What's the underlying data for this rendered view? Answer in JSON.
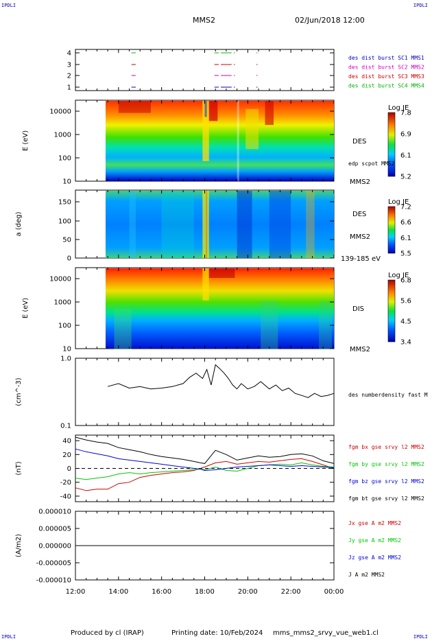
{
  "corners": {
    "top_left": "IPDLI",
    "top_right": "IPDLI",
    "bottom_left": "IPDLI",
    "bottom_right": "IPDLI"
  },
  "header": {
    "spacecraft": "MMS2",
    "datetime": "02/Jun/2018 12:00"
  },
  "footer": {
    "credit": "Produced by cl (IRAP)",
    "print_date": "Printing date: 10/Feb/2024",
    "filename": "mms_mms2_srvy_vue_web1.cl"
  },
  "time_axis": {
    "ticks": [
      "12:00",
      "14:00",
      "16:00",
      "18:00",
      "20:00",
      "22:00",
      "00:00"
    ],
    "range_hours": [
      12,
      24
    ]
  },
  "colors": {
    "mms1": "#0000c8",
    "mms2": "#c800c8",
    "mms3": "#c80000",
    "mms4": "#00b400",
    "bx": "#cc0000",
    "by": "#00c800",
    "bz": "#0000dd",
    "bt": "#000000"
  },
  "chart_data": [
    {
      "type": "scatter",
      "panel": "burst-availability",
      "ylabel": "",
      "yticks": [
        "4",
        "3",
        "2",
        "1"
      ],
      "legend": [
        "des dist burst SC1 MMS1",
        "des dist burst SC2 MMS2",
        "des dist burst SC3 MMS3",
        "des dist burst SC4 MMS4"
      ],
      "segments_hours": [
        [
          14.6,
          14.8
        ],
        [
          18.45,
          18.65
        ],
        [
          18.75,
          19.25
        ],
        [
          19.35,
          19.4
        ],
        [
          20.4,
          20.45
        ]
      ]
    },
    {
      "type": "heatmap",
      "panel": "des-energy",
      "ylabel": "E (eV)",
      "yticks": [
        "10000",
        "1000",
        "100",
        "10"
      ],
      "right_labels": [
        "DES",
        "edp scpot MMS2",
        "MMS2"
      ],
      "colorbar": {
        "title": "Log JE",
        "ticks": [
          "7.8",
          "6.9",
          "6.1",
          "5.2"
        ]
      },
      "data_start_hour": 13.4
    },
    {
      "type": "heatmap",
      "panel": "des-pitch-angle",
      "ylabel": "a (deg)",
      "yticks": [
        "150",
        "100",
        "50",
        "0"
      ],
      "right_labels": [
        "DES",
        "MMS2",
        "139-185 eV"
      ],
      "colorbar": {
        "title": "Log JE",
        "ticks": [
          "7.2",
          "6.6",
          "6.1",
          "5.5"
        ]
      }
    },
    {
      "type": "heatmap",
      "panel": "dis-energy",
      "ylabel": "E (eV)",
      "yticks": [
        "10000",
        "1000",
        "100",
        "10"
      ],
      "right_labels": [
        "DIS",
        "MMS2"
      ],
      "colorbar": {
        "title": "Log JE",
        "ticks": [
          "6.8",
          "5.6",
          "4.5",
          "3.4"
        ]
      }
    },
    {
      "type": "line",
      "panel": "density",
      "ylabel": "(cm^-3)",
      "yticks": [
        "1.0",
        "0.1"
      ],
      "legend": [
        "des numberdensity fast M"
      ],
      "x_hours": [
        13.5,
        14.0,
        14.5,
        15.0,
        15.5,
        16.0,
        16.5,
        17.0,
        17.3,
        17.6,
        17.9,
        18.1,
        18.3,
        18.5,
        18.7,
        18.9,
        19.1,
        19.3,
        19.5,
        19.7,
        20.0,
        20.3,
        20.6,
        21.0,
        21.3,
        21.6,
        21.9,
        22.2,
        22.5,
        22.8,
        23.1,
        23.4,
        23.7,
        24.0
      ],
      "values": [
        0.38,
        0.42,
        0.36,
        0.38,
        0.35,
        0.36,
        0.38,
        0.42,
        0.52,
        0.6,
        0.5,
        0.68,
        0.4,
        0.8,
        0.7,
        0.6,
        0.5,
        0.4,
        0.35,
        0.42,
        0.35,
        0.38,
        0.45,
        0.35,
        0.4,
        0.33,
        0.36,
        0.3,
        0.28,
        0.26,
        0.3,
        0.27,
        0.28,
        0.3
      ]
    },
    {
      "type": "line",
      "panel": "magnetic-field",
      "ylabel": "(nT)",
      "yticks": [
        "40",
        "20",
        "0",
        "-20",
        "-40"
      ],
      "ylim": [
        -48,
        48
      ],
      "legend": [
        "fgm bx gse srvy l2 MMS2",
        "fgm by gse srvy l2 MMS2",
        "fgm bz gse srvy l2 MMS2",
        "fgm bt gse srvy l2 MMS2"
      ],
      "x_hours": [
        12.0,
        12.5,
        13.0,
        13.5,
        14.0,
        14.5,
        15.0,
        15.5,
        16.0,
        16.5,
        17.0,
        17.5,
        17.8,
        18.0,
        18.5,
        19.0,
        19.5,
        20.0,
        20.5,
        21.0,
        21.5,
        22.0,
        22.5,
        23.0,
        23.5,
        24.0
      ],
      "series": [
        {
          "name": "bx",
          "values": [
            -28,
            -32,
            -30,
            -30,
            -22,
            -20,
            -13,
            -10,
            -8,
            -6,
            -5,
            -3,
            0,
            2,
            8,
            10,
            6,
            8,
            10,
            9,
            11,
            13,
            14,
            10,
            5,
            0
          ]
        },
        {
          "name": "by",
          "values": [
            -14,
            -16,
            -14,
            -12,
            -8,
            -6,
            -8,
            -6,
            -5,
            -4,
            -3,
            -2,
            -1,
            -2,
            2,
            -3,
            -4,
            0,
            4,
            5,
            6,
            5,
            8,
            5,
            3,
            2
          ]
        },
        {
          "name": "bz",
          "values": [
            28,
            24,
            21,
            18,
            14,
            12,
            10,
            8,
            6,
            4,
            2,
            0,
            -1,
            -3,
            -2,
            0,
            2,
            3,
            4,
            5,
            4,
            3,
            4,
            3,
            2,
            1
          ]
        },
        {
          "name": "bt",
          "values": [
            45,
            41,
            38,
            36,
            30,
            27,
            24,
            20,
            17,
            15,
            13,
            10,
            8,
            7,
            26,
            20,
            12,
            15,
            18,
            16,
            17,
            20,
            21,
            18,
            11,
            7
          ]
        }
      ]
    },
    {
      "type": "line",
      "panel": "current-density",
      "ylabel": "(A/m2)",
      "yticks": [
        "0.000010",
        "0.000005",
        "0.000000",
        "-0.000005",
        "-0.000010"
      ],
      "ylim": [
        -1e-05,
        1e-05
      ],
      "legend": [
        "Jx gse A m2 MMS2",
        "Jy gse A m2 MMS2",
        "Jz gse A m2 MMS2",
        "J A m2 MMS2"
      ],
      "values_note": "",
      "x_hours": [
        12.0,
        24.0
      ],
      "values": [
        0.0,
        0.0
      ]
    }
  ]
}
